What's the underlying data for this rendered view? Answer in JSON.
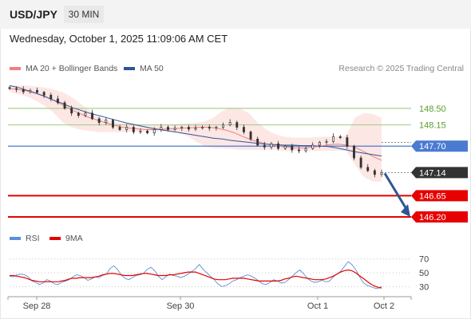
{
  "header": {
    "symbol": "USD/JPY",
    "timeframe": "30 MIN",
    "datetime": "Wednesday, October 1, 2025 11:09:06 AM CET"
  },
  "legend": {
    "ma20_label": "MA 20 + Bollinger Bands",
    "ma50_label": "MA 50",
    "credit": "Research © 2025 Trading Central"
  },
  "rsi_legend": {
    "rsi_label": "RSI",
    "ma_label": "9MA"
  },
  "colors": {
    "ma20": "#f08080",
    "bollinger_fill": "#fde3e1",
    "ma50": "#2f5597",
    "candle": "#333333",
    "green_level": "#a9d08e",
    "green_text": "#5a9e2f",
    "blue_level": "#4a7bd0",
    "red_level": "#e60000",
    "arrow": "#2f5597",
    "rsi_line": "#5b8fd9",
    "rsi_ma": "#e60000"
  },
  "chart_data": [
    {
      "type": "candlestick",
      "x_ticks": [
        "Sep 28",
        "Sep 30",
        "Oct 1",
        "Oct 2"
      ],
      "ylim": [
        145.9,
        149.2
      ],
      "close": [
        148.92,
        148.9,
        148.85,
        148.88,
        148.84,
        148.78,
        148.7,
        148.62,
        148.5,
        148.4,
        148.35,
        148.4,
        148.28,
        148.2,
        148.25,
        148.1,
        148.05,
        148.1,
        148.0,
        148.02,
        147.98,
        148.05,
        148.1,
        148.05,
        148.08,
        148.1,
        148.06,
        148.08,
        148.1,
        148.08,
        148.1,
        148.15,
        148.2,
        148.1,
        148.0,
        147.85,
        147.72,
        147.68,
        147.75,
        147.65,
        147.7,
        147.62,
        147.6,
        147.65,
        147.72,
        147.78,
        147.8,
        147.9,
        147.88,
        147.7,
        147.45,
        147.25,
        147.18,
        147.1,
        147.14
      ],
      "ma20": [
        148.92,
        148.9,
        148.87,
        148.82,
        148.76,
        148.68,
        148.58,
        148.48,
        148.4,
        148.32,
        148.26,
        148.2,
        148.15,
        148.1,
        148.08,
        148.06,
        148.05,
        148.05,
        148.06,
        148.07,
        148.08,
        148.09,
        148.1,
        148.1,
        148.08,
        148.04,
        147.98,
        147.9,
        147.83,
        147.78,
        147.73,
        147.7,
        147.68,
        147.66,
        147.66,
        147.68,
        147.7,
        147.73,
        147.74,
        147.72,
        147.67,
        147.58,
        147.48,
        147.4
      ],
      "ma50": [
        148.98,
        148.94,
        148.88,
        148.82,
        148.75,
        148.67,
        148.6,
        148.52,
        148.46,
        148.4,
        148.35,
        148.3,
        148.25,
        148.2,
        148.16,
        148.12,
        148.08,
        148.05,
        148.02,
        147.99,
        147.96,
        147.93,
        147.9,
        147.87,
        147.85,
        147.82,
        147.8,
        147.78,
        147.76,
        147.74,
        147.73,
        147.72,
        147.72,
        147.71,
        147.71,
        147.7,
        147.69,
        147.66,
        147.62,
        147.58,
        147.55,
        147.52,
        147.49
      ],
      "bb_upper": [
        149.0,
        148.98,
        148.98,
        148.96,
        148.94,
        148.9,
        148.84,
        148.74,
        148.6,
        148.45,
        148.32,
        148.25,
        148.2,
        148.18,
        148.17,
        148.16,
        148.15,
        148.15,
        148.16,
        148.17,
        148.18,
        148.19,
        148.22,
        148.3,
        148.44,
        148.52,
        148.5,
        148.4,
        148.2,
        148.05,
        147.95,
        147.9,
        147.88,
        147.88,
        147.88,
        147.9,
        147.9,
        147.9,
        147.92,
        148.3,
        148.4,
        148.38,
        148.3
      ],
      "bb_lower": [
        148.85,
        148.8,
        148.75,
        148.66,
        148.55,
        148.4,
        148.2,
        148.1,
        148.05,
        148.02,
        148.0,
        148.0,
        148.0,
        148.0,
        148.01,
        148.01,
        148.02,
        148.02,
        148.0,
        147.98,
        147.92,
        147.8,
        147.7,
        147.66,
        147.65,
        147.64,
        147.62,
        147.62,
        147.62,
        147.62,
        147.62,
        147.6,
        147.6,
        147.6,
        147.6,
        147.6,
        147.6,
        147.6,
        147.6,
        147.3,
        147.05,
        146.95,
        146.95
      ],
      "levels": [
        {
          "value": 148.5,
          "label": "148.50",
          "kind": "resistance"
        },
        {
          "value": 148.15,
          "label": "148.15",
          "kind": "resistance"
        },
        {
          "value": 147.7,
          "label": "147.70",
          "kind": "pivot"
        },
        {
          "value": 147.14,
          "label": "147.14",
          "kind": "last"
        },
        {
          "value": 146.65,
          "label": "146.65",
          "kind": "support"
        },
        {
          "value": 146.2,
          "label": "146.20",
          "kind": "support"
        }
      ],
      "arrow": {
        "from": 147.14,
        "to": 146.2
      }
    },
    {
      "type": "line",
      "ylim": [
        20,
        80
      ],
      "y_ticks": [
        "70",
        "50",
        "30"
      ],
      "y_tick_values": [
        70,
        50,
        30
      ],
      "rsi": [
        45,
        44,
        47,
        48,
        47,
        44,
        38,
        36,
        33,
        35,
        40,
        38,
        34,
        33,
        36,
        38,
        40,
        44,
        47,
        46,
        43,
        39,
        41,
        44,
        43,
        46,
        48,
        56,
        60,
        55,
        47,
        42,
        40,
        43,
        46,
        47,
        49,
        55,
        58,
        53,
        45,
        40,
        44,
        48,
        46,
        45,
        43,
        45,
        48,
        52,
        56,
        62,
        55,
        50,
        45,
        40,
        34,
        30,
        31,
        34,
        38,
        40,
        43,
        45,
        47,
        45,
        42,
        38,
        34,
        33,
        36,
        40,
        38,
        35,
        36,
        40,
        45,
        50,
        54,
        49,
        42,
        38,
        36,
        37,
        39,
        37,
        38,
        44,
        48,
        52,
        59,
        66,
        62,
        55,
        45,
        36,
        32,
        30,
        28,
        27,
        30
      ],
      "ma9": [
        46,
        46,
        45,
        44,
        43,
        41,
        39,
        38,
        37,
        37,
        37,
        37,
        37,
        37,
        38,
        39,
        41,
        42,
        42,
        43,
        43,
        43,
        43,
        44,
        45,
        47,
        48,
        49,
        49,
        48,
        47,
        46,
        46,
        46,
        47,
        48,
        49,
        49,
        48,
        47,
        46,
        46,
        46,
        47,
        47,
        48,
        49,
        50,
        51,
        51,
        51,
        49,
        47,
        45,
        43,
        41,
        40,
        40,
        40,
        41,
        42,
        42,
        42,
        42,
        41,
        40,
        39,
        38,
        38,
        38,
        38,
        38,
        38,
        39,
        41,
        42,
        44,
        45,
        44,
        43,
        42,
        41,
        40,
        40,
        40,
        41,
        43,
        45,
        48,
        51,
        53,
        54,
        53,
        50,
        46,
        42,
        38,
        34,
        31,
        29,
        28
      ]
    }
  ]
}
